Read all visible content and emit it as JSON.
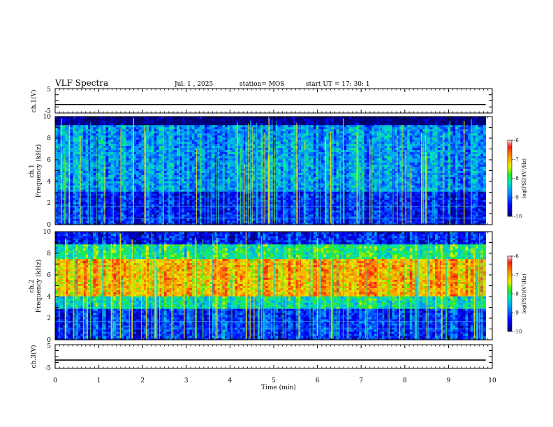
{
  "header": {
    "title": "VLF Spectra",
    "date": "Jul. 1 , 2025",
    "station": "station= MOS",
    "start": "start UT = 17: 30: 1"
  },
  "chart_data": [
    {
      "type": "line",
      "name": "ch1-voltage",
      "ylabel": "ch.1(V)",
      "ylim": [
        -5,
        5
      ],
      "yticks": [
        "5",
        "-5"
      ],
      "xlim": [
        0,
        10
      ],
      "level": -1.5
    },
    {
      "type": "heatmap",
      "name": "ch1-spectrogram",
      "ylabel": "ch.1 Frequency (kHz)",
      "ylabel_line1": "ch.1",
      "ylabel_line2": "Frequency (kHz)",
      "ylim": [
        0,
        10
      ],
      "yticks": [
        "0",
        "2",
        "4",
        "6",
        "8",
        "10"
      ],
      "xlim": [
        0,
        10
      ],
      "data_end_min": 9.85,
      "colorbar": {
        "label": "log(PSD)(V²/Hz)",
        "ticks": [
          "-6",
          "-7",
          "-8",
          "-9",
          "-10"
        ],
        "range": [
          -10,
          -6
        ]
      },
      "bands": [
        {
          "from": 0,
          "to": 3,
          "level": -9.3
        },
        {
          "from": 3,
          "to": 9.3,
          "level": -8.7
        },
        {
          "from": 9.3,
          "to": 10,
          "level": -10
        }
      ],
      "lines_khz": [
        1.7,
        0.6
      ]
    },
    {
      "type": "heatmap",
      "name": "ch2-spectrogram",
      "ylabel": "ch.2 Frequency (kHz)",
      "ylabel_line1": "ch.2",
      "ylabel_line2": "Frequency (kHz)",
      "ylim": [
        0,
        10
      ],
      "yticks": [
        "0",
        "2",
        "4",
        "6",
        "8",
        "10"
      ],
      "xlim": [
        0,
        10
      ],
      "data_end_min": 9.85,
      "colorbar": {
        "label": "log(PSD)(V²/Hz)",
        "ticks": [
          "-6",
          "-7",
          "-8",
          "-9",
          "-10"
        ],
        "range": [
          -10,
          -6
        ]
      },
      "bands": [
        {
          "from": 0,
          "to": 2.8,
          "level": -9.2
        },
        {
          "from": 2.8,
          "to": 4.0,
          "level": -8.2
        },
        {
          "from": 4.0,
          "to": 7.5,
          "level": -7.0
        },
        {
          "from": 7.5,
          "to": 8.8,
          "level": -8.0
        },
        {
          "from": 8.8,
          "to": 10,
          "level": -9.3
        }
      ],
      "lines_khz": [
        1.7,
        1.0
      ]
    },
    {
      "type": "line",
      "name": "ch3-voltage",
      "ylabel": "ch.3(V)",
      "ylim": [
        -5,
        5
      ],
      "yticks": [
        "5",
        "-5"
      ],
      "xlim": [
        0,
        10
      ],
      "level": -1.5
    }
  ],
  "x_axis": {
    "label": "Time (min)",
    "ticks": [
      "0",
      "1",
      "2",
      "3",
      "4",
      "5",
      "6",
      "7",
      "8",
      "9",
      "10"
    ]
  }
}
